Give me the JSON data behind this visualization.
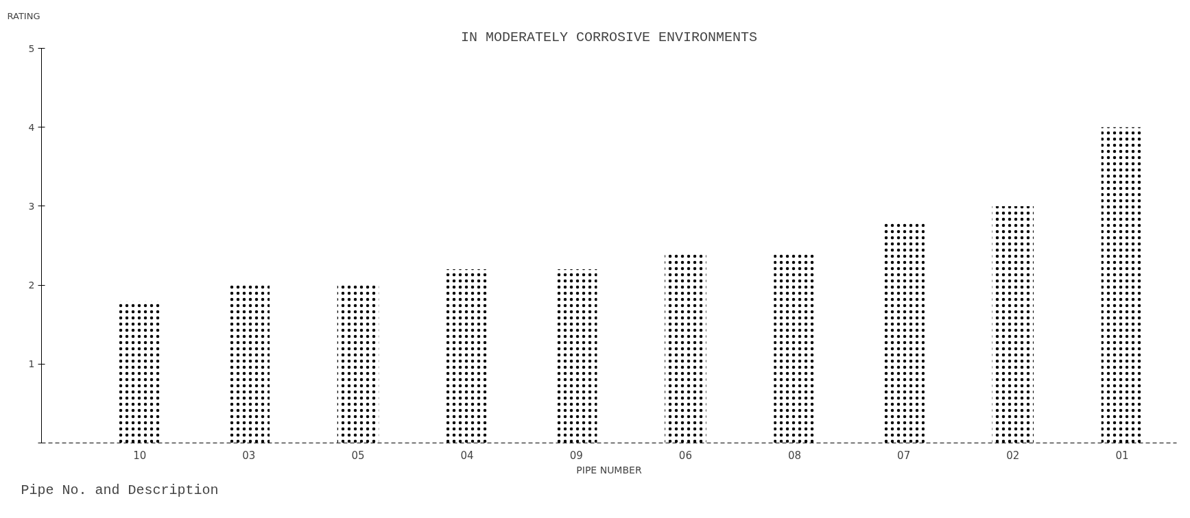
{
  "chart_data": {
    "type": "bar",
    "title": "IN MODERATELY CORROSIVE ENVIRONMENTS",
    "ylabel": "RATING",
    "xlabel": "PIPE NUMBER",
    "categories": [
      "10",
      "03",
      "05",
      "04",
      "09",
      "06",
      "08",
      "07",
      "02",
      "01"
    ],
    "values": [
      1.8,
      2.0,
      2.0,
      2.2,
      2.2,
      2.4,
      2.4,
      2.8,
      3.0,
      4.0
    ],
    "color": "#000000",
    "ylim": [
      0,
      5
    ],
    "yticks": [
      {
        "value": 0,
        "label": null
      },
      1,
      2,
      3,
      4,
      5
    ],
    "grid": false,
    "annotations": [
      "Pipe No. and Description"
    ]
  }
}
